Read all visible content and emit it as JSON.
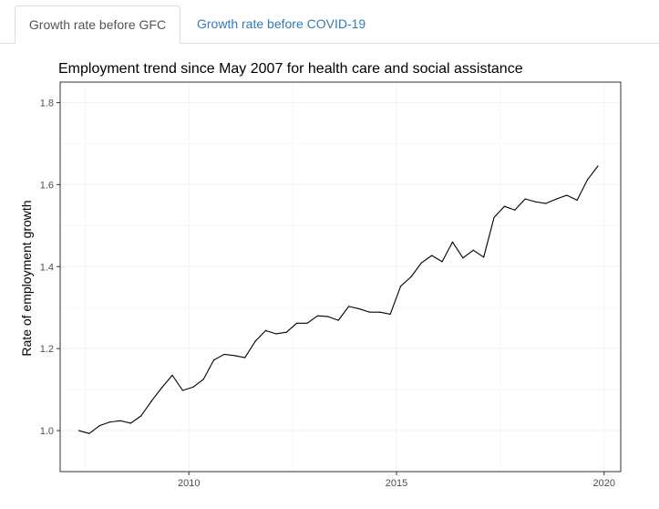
{
  "tabs": [
    {
      "label": "Growth rate before GFC",
      "active": true
    },
    {
      "label": "Growth rate before COVID-19",
      "active": false
    }
  ],
  "colors": {
    "active_tab_text": "#555555",
    "inactive_tab_text": "#337ab7",
    "line": "#000000",
    "grid": "#f3f3f3",
    "panel_border": "#333333"
  },
  "chart_data": {
    "type": "line",
    "title": "Employment trend since May 2007 for health care and social assistance",
    "xlabel": "",
    "ylabel": "Rate of employment growth",
    "xlim": [
      2006.9,
      2020.4
    ],
    "ylim": [
      0.9,
      1.85
    ],
    "xticks": [
      2010,
      2015,
      2020
    ],
    "xtick_labels": [
      "2010",
      "2015",
      "2020"
    ],
    "yticks": [
      1.0,
      1.2,
      1.4,
      1.6,
      1.8
    ],
    "ytick_labels": [
      "1.0",
      "1.2",
      "1.4",
      "1.6",
      "1.8"
    ],
    "grid": true,
    "legend": "none",
    "series": [
      {
        "x": [
          2007.35,
          2007.6,
          2007.85,
          2008.1,
          2008.35,
          2008.6,
          2008.85,
          2009.1,
          2009.35,
          2009.6,
          2009.85,
          2010.1,
          2010.35,
          2010.6,
          2010.85,
          2011.1,
          2011.35,
          2011.6,
          2011.85,
          2012.1,
          2012.35,
          2012.6,
          2012.85,
          2013.1,
          2013.35,
          2013.6,
          2013.85,
          2014.1,
          2014.35,
          2014.6,
          2014.85,
          2015.1,
          2015.35,
          2015.6,
          2015.85,
          2016.1,
          2016.35,
          2016.6,
          2016.85,
          2017.1,
          2017.35,
          2017.6,
          2017.85,
          2018.1,
          2018.35,
          2018.6,
          2018.85,
          2019.1,
          2019.35,
          2019.6,
          2019.85
        ],
        "y": [
          1.0,
          0.993,
          1.012,
          1.021,
          1.024,
          1.018,
          1.036,
          1.072,
          1.105,
          1.135,
          1.098,
          1.106,
          1.125,
          1.172,
          1.186,
          1.183,
          1.178,
          1.218,
          1.244,
          1.236,
          1.24,
          1.262,
          1.262,
          1.28,
          1.278,
          1.269,
          1.303,
          1.297,
          1.289,
          1.289,
          1.284,
          1.352,
          1.375,
          1.409,
          1.427,
          1.412,
          1.46,
          1.421,
          1.44,
          1.423,
          1.52,
          1.547,
          1.538,
          1.565,
          1.558,
          1.554,
          1.565,
          1.574,
          1.562,
          1.612,
          1.645
        ]
      }
    ]
  }
}
